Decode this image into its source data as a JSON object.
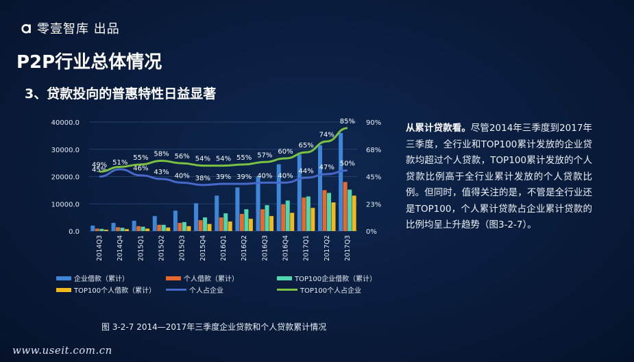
{
  "brand": {
    "name": "零壹智库 出品",
    "logo_icon": "alpha-logo-icon"
  },
  "page": {
    "title": "P2P行业总体情况",
    "subtitle": "3、贷款投向的普惠特性日益显著",
    "caption": "图 3-2-7  2014—2017年三季度企业贷款和个人贷款累计情况",
    "footer_url": "www.useit.com.cn"
  },
  "side_text": {
    "lead": "从累计贷款看。",
    "body": "尽管2014年三季度到2017年三季度，全行业和TOP100累计发放的企业贷款均超过个人贷款，TOP100累计发放的个人贷款比例高于全行业累计发放的个人贷款比例。但同时，值得关注的是，不管是全行业还是TOP100，个人累计贷款占企业累计贷款的比例均呈上升趋势（图3-2-7）。"
  },
  "chart_data": {
    "type": "bar",
    "categories": [
      "2014Q3",
      "2014Q4",
      "2015Q1",
      "2015Q2",
      "2015Q3",
      "2015Q4",
      "2016Q1",
      "2016Q2",
      "2016Q3",
      "2016Q4",
      "2017Q1",
      "2017Q2",
      "2017Q3"
    ],
    "y_ticks": [
      "0.0",
      "10000.0",
      "20000.0",
      "30000.0",
      "40000.0"
    ],
    "ylim": [
      0,
      40000
    ],
    "y2_ticks": [
      "0%",
      "23%",
      "45%",
      "68%",
      "90%"
    ],
    "y2lim": [
      0,
      90
    ],
    "series": [
      {
        "name": "企业借款（累计）",
        "kind": "bar",
        "color": "#3d86d8",
        "values": [
          2000,
          3000,
          3800,
          5500,
          7500,
          10200,
          13000,
          16000,
          20000,
          24500,
          28000,
          31500,
          36000
        ]
      },
      {
        "name": "个人借款（累计）",
        "kind": "bar",
        "color": "#e8692c",
        "values": [
          900,
          1400,
          1800,
          2300,
          3000,
          4000,
          5000,
          6300,
          8000,
          9800,
          12300,
          15000,
          18000
        ]
      },
      {
        "name": "TOP100企业借款（累计）",
        "kind": "bar",
        "color": "#4fd8b0",
        "values": [
          800,
          1200,
          1600,
          2300,
          3300,
          5000,
          6500,
          8000,
          9500,
          11200,
          12700,
          14000,
          15200
        ]
      },
      {
        "name": "TOP100个人借款（累计）",
        "kind": "bar",
        "color": "#f2b81c",
        "values": [
          500,
          700,
          900,
          1300,
          1800,
          2600,
          3500,
          4500,
          5500,
          6700,
          8500,
          10500,
          13000
        ]
      },
      {
        "name": "个人占企业",
        "kind": "line",
        "color": "#4769c9",
        "values": [
          45,
          51,
          46,
          43,
          40,
          38,
          39,
          39,
          40,
          40,
          44,
          47,
          50
        ],
        "labels": [
          "45%",
          "51%",
          "46%",
          "43%",
          "40%",
          "38%",
          "39%",
          "39%",
          "40%",
          "40%",
          "44%",
          "47%",
          "50%"
        ]
      },
      {
        "name": "TOP100个人占企业",
        "kind": "line",
        "color": "#7cc242",
        "values": [
          49,
          53,
          55,
          58,
          56,
          54,
          54,
          55,
          57,
          60,
          65,
          74,
          85
        ],
        "labels": [
          "49%",
          "",
          "55%",
          "58%",
          "56%",
          "54%",
          "54%",
          "55%",
          "57%",
          "60%",
          "65%",
          "74%",
          "85%"
        ]
      }
    ]
  }
}
